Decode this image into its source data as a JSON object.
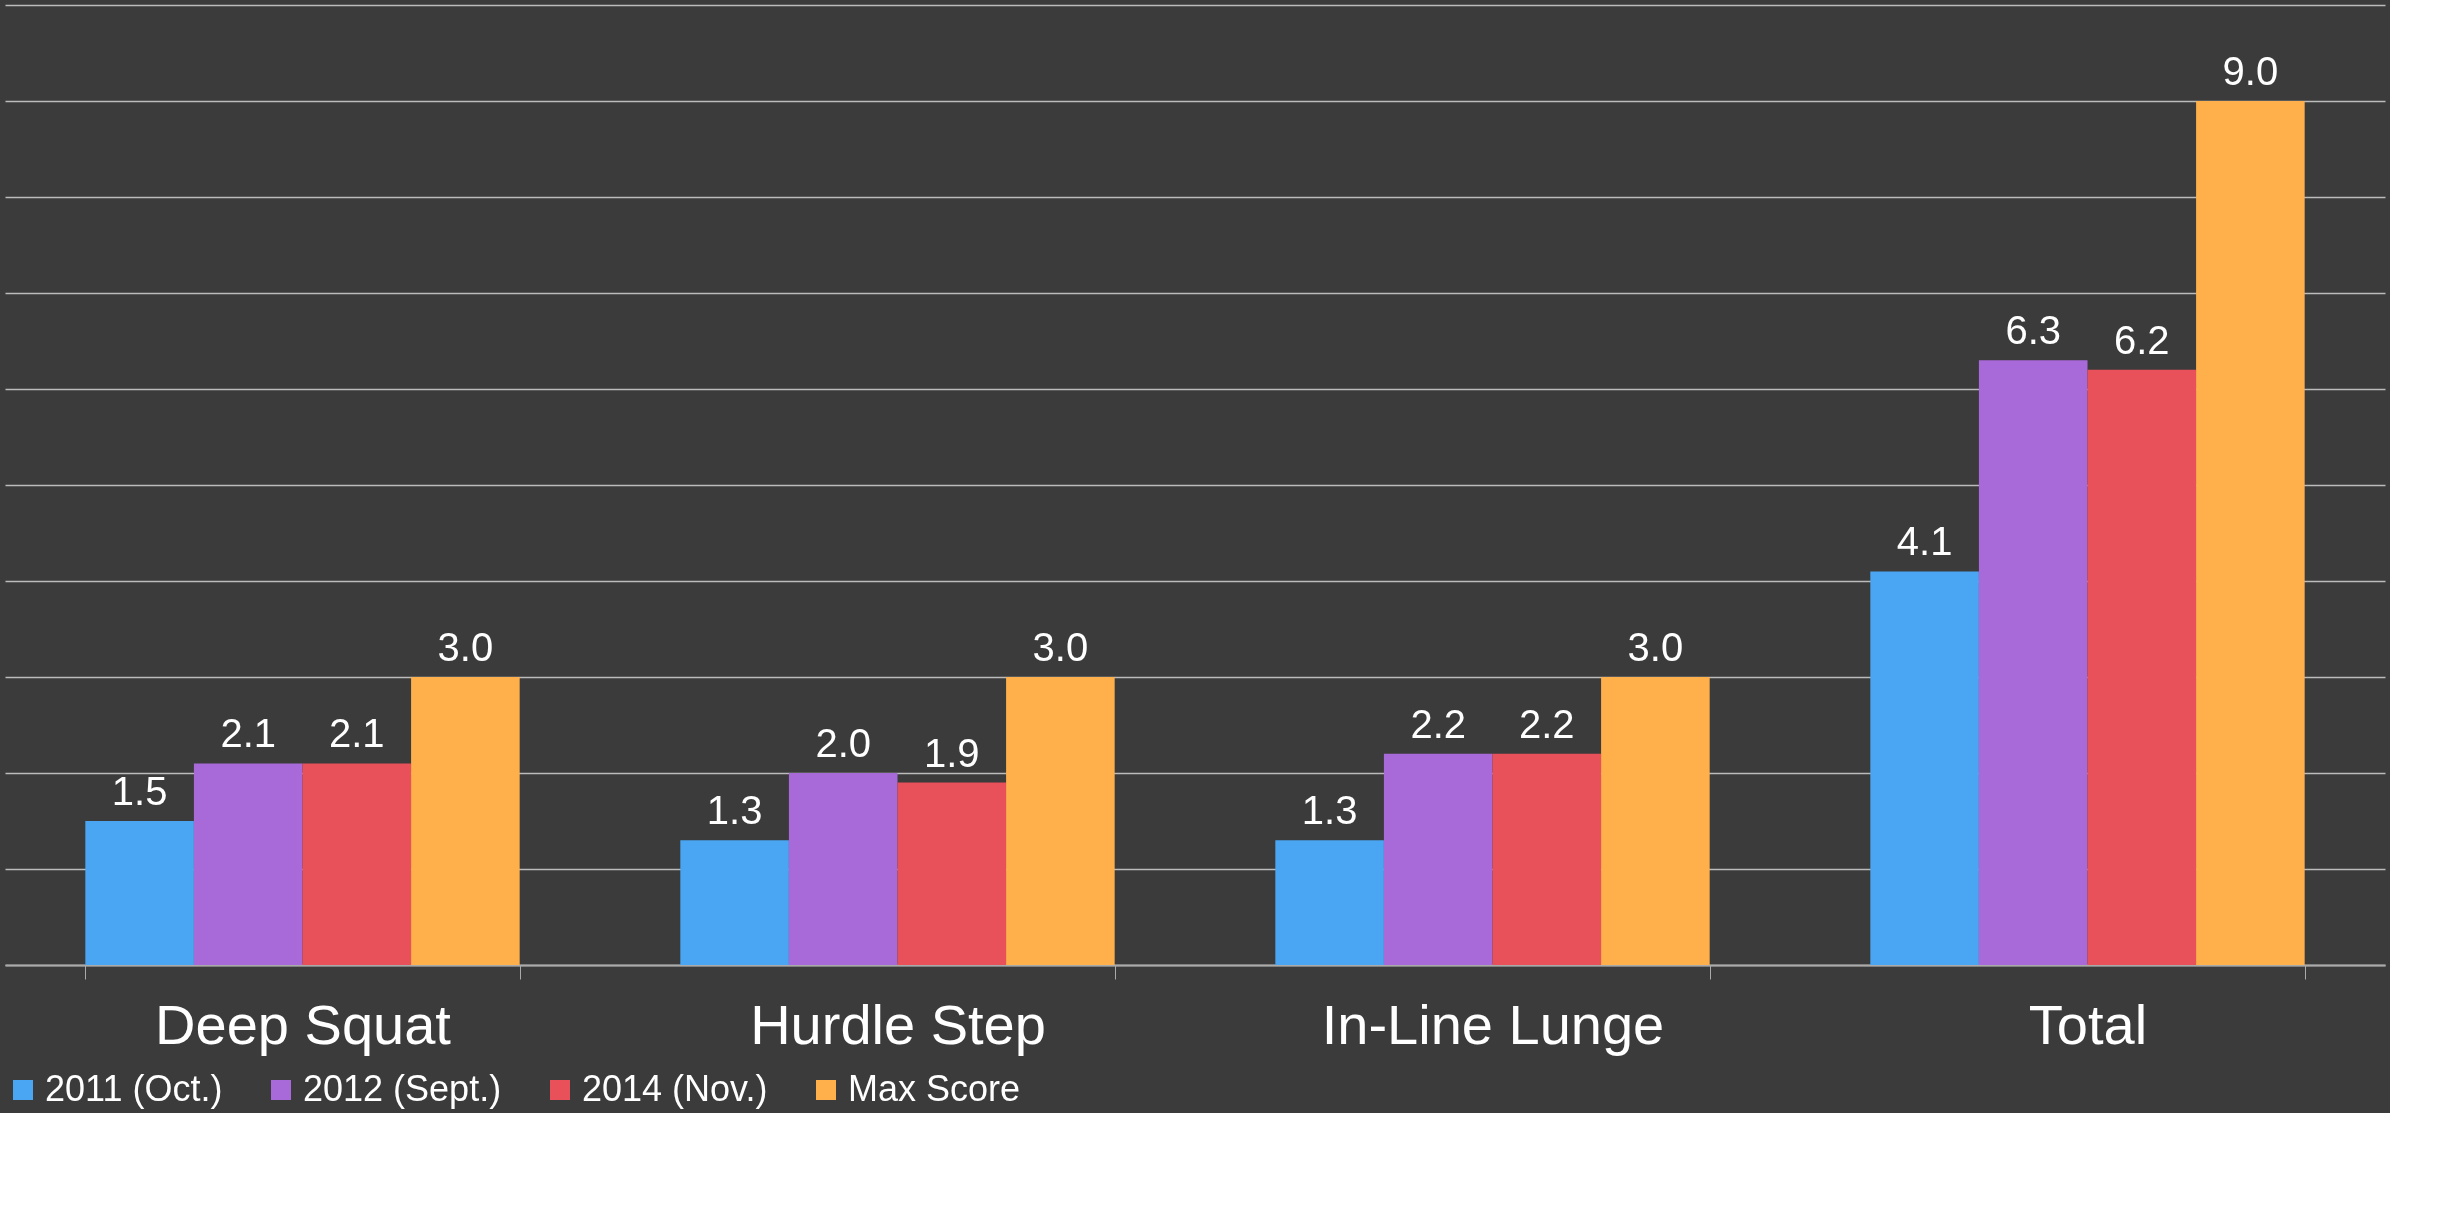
{
  "chart_data": {
    "type": "bar",
    "categories": [
      "Deep Squat",
      "Hurdle Step",
      "In-Line Lunge",
      "Total"
    ],
    "series": [
      {
        "name": "2011 (Oct.)",
        "color": "#4aa6f2",
        "values": [
          1.5,
          1.3,
          1.3,
          4.1
        ],
        "value_labels": [
          "1.5",
          "1.3",
          "1.3",
          "4.1"
        ]
      },
      {
        "name": "2012 (Sept.)",
        "color": "#a86ad8",
        "values": [
          2.1,
          2.0,
          2.2,
          6.3
        ],
        "value_labels": [
          "2.1",
          "2.0",
          "2.2",
          "6.3"
        ]
      },
      {
        "name": "2014 (Nov.)",
        "color": "#e8505a",
        "values": [
          2.1,
          1.9,
          2.2,
          6.2
        ],
        "value_labels": [
          "2.1",
          "1.9",
          "2.2",
          "6.2"
        ]
      },
      {
        "name": "Max Score",
        "color": "#ffb04a",
        "values": [
          3.0,
          3.0,
          3.0,
          9.0
        ],
        "value_labels": [
          "3.0",
          "3.0",
          "3.0",
          "9.0"
        ]
      }
    ],
    "ylim": [
      0,
      10
    ],
    "yticks": [
      {
        "value": 0,
        "label": null
      },
      {
        "value": 1,
        "label": null
      },
      {
        "value": 2,
        "label": null
      },
      {
        "value": 3,
        "label": null
      },
      {
        "value": 4,
        "label": null
      },
      {
        "value": 5,
        "label": null
      },
      {
        "value": 6,
        "label": null
      },
      {
        "value": 7,
        "label": null
      },
      {
        "value": 8,
        "label": null
      },
      {
        "value": 9,
        "label": null
      },
      {
        "value": 10,
        "label": null
      }
    ],
    "grid": "y",
    "legend": "bottom",
    "tick_labels": "x"
  }
}
